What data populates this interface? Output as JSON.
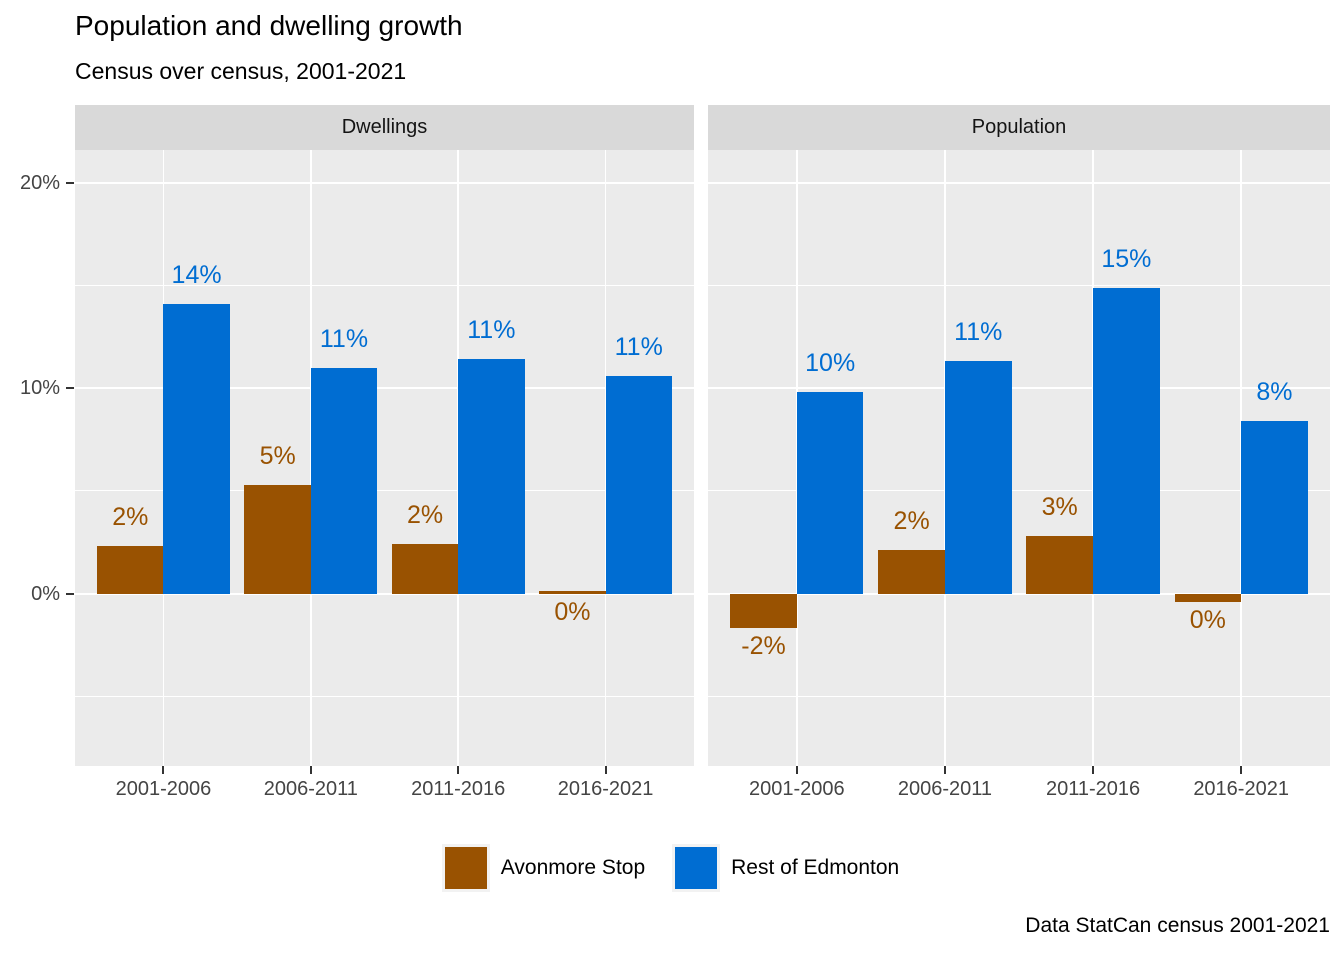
{
  "title": "Population and dwelling growth",
  "subtitle": "Census over census, 2001-2021",
  "caption": "Data StatCan census 2001-2021",
  "colors": {
    "avonmore": "#995201",
    "rest": "#006dd2",
    "panel_bg": "#ebebeb",
    "strip_bg": "#d9d9d9",
    "gridline": "#ffffff",
    "axis_text": "#444444",
    "tick_mark": "#333333"
  },
  "legend": {
    "items": [
      {
        "label": "Avonmore Stop",
        "color_key": "avonmore"
      },
      {
        "label": "Rest of Edmonton",
        "color_key": "rest"
      }
    ]
  },
  "chart_data": {
    "type": "bar",
    "categories": [
      "2001-2006",
      "2006-2011",
      "2011-2016",
      "2016-2021"
    ],
    "y_ticks": [
      {
        "value": 20,
        "label": "20%"
      },
      {
        "value": 10,
        "label": "10%"
      },
      {
        "value": 0,
        "label": "0%"
      }
    ],
    "y_minor_breaks": [
      15,
      5,
      -5
    ],
    "ylim": [
      -8.4,
      21.6
    ],
    "grid": "on",
    "legend_position": "bottom",
    "facets": [
      {
        "label": "Dwellings",
        "series": [
          {
            "name": "Avonmore Stop",
            "color_key": "avonmore",
            "values": [
              2.3,
              5.3,
              2.4,
              0.1
            ],
            "labels": [
              "2%",
              "5%",
              "2%",
              "0%"
            ]
          },
          {
            "name": "Rest of Edmonton",
            "color_key": "rest",
            "values": [
              14.1,
              11.0,
              11.4,
              10.6
            ],
            "labels": [
              "14%",
              "11%",
              "11%",
              "11%"
            ]
          }
        ]
      },
      {
        "label": "Population",
        "series": [
          {
            "name": "Avonmore Stop",
            "color_key": "avonmore",
            "values": [
              -1.7,
              2.1,
              2.8,
              -0.4
            ],
            "labels": [
              "-2%",
              "2%",
              "3%",
              "0%"
            ]
          },
          {
            "name": "Rest of Edmonton",
            "color_key": "rest",
            "values": [
              9.8,
              11.3,
              14.9,
              8.4
            ],
            "labels": [
              "10%",
              "11%",
              "15%",
              "8%"
            ]
          }
        ]
      }
    ]
  }
}
